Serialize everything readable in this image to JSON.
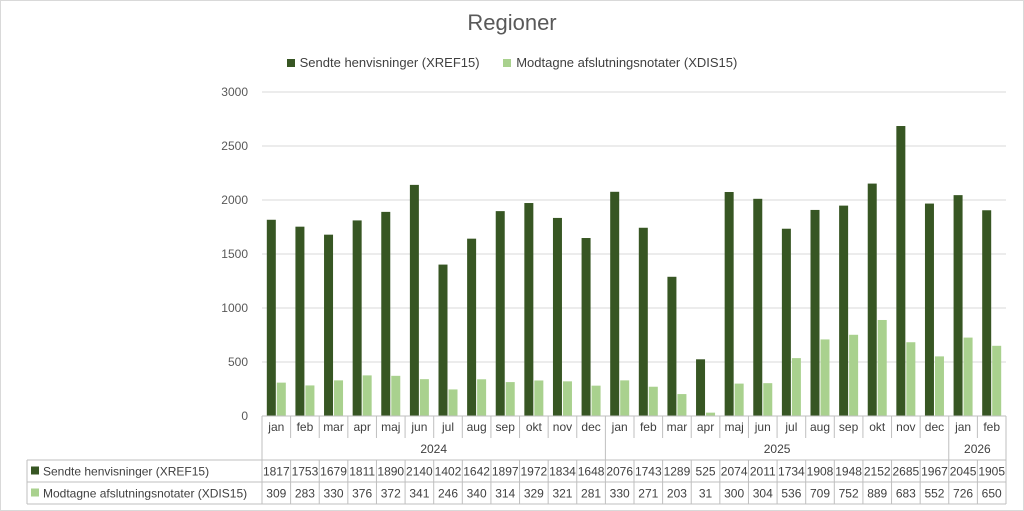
{
  "chart_data": {
    "type": "bar",
    "title": "Regioner",
    "xlabel": "",
    "ylabel": "",
    "ylim": [
      0,
      3000
    ],
    "yticks": [
      "0",
      "500",
      "1000",
      "1500",
      "2000",
      "2500",
      "3000"
    ],
    "grid": true,
    "legend_position": "top",
    "categories": [
      "jan",
      "feb",
      "mar",
      "apr",
      "maj",
      "jun",
      "jul",
      "aug",
      "sep",
      "okt",
      "nov",
      "dec",
      "jan",
      "feb",
      "mar",
      "apr",
      "maj",
      "jun",
      "jul",
      "aug",
      "sep",
      "okt",
      "nov",
      "dec",
      "jan",
      "feb"
    ],
    "year_groups": [
      {
        "label": "2024",
        "count": 12
      },
      {
        "label": "2025",
        "count": 12
      },
      {
        "label": "2026",
        "count": 2
      }
    ],
    "series": [
      {
        "name": "Sendte henvisninger (XREF15)",
        "color": "#375623",
        "values": [
          1817,
          1753,
          1679,
          1811,
          1890,
          2140,
          1402,
          1642,
          1897,
          1972,
          1834,
          1648,
          2076,
          1743,
          1289,
          525,
          2074,
          2011,
          1734,
          1908,
          1948,
          2152,
          2685,
          1967,
          2045,
          1905
        ]
      },
      {
        "name": "Modtagne afslutningsnotater (XDIS15)",
        "color": "#a9d18e",
        "values": [
          309,
          283,
          330,
          376,
          372,
          341,
          246,
          340,
          314,
          329,
          321,
          281,
          330,
          271,
          203,
          31,
          300,
          304,
          536,
          709,
          752,
          889,
          683,
          552,
          726,
          650
        ]
      }
    ]
  }
}
